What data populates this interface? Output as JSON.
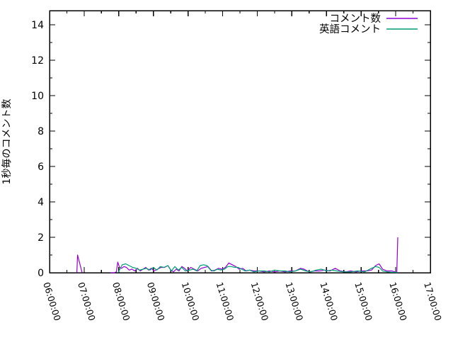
{
  "chart_data": {
    "type": "line",
    "title": "",
    "xlabel": "",
    "ylabel": "1秒毎のコメント数",
    "ylim": [
      0,
      14.8
    ],
    "xlim_hours": [
      6,
      17
    ],
    "grid": false,
    "legend_position": "top-right-inside",
    "y_major_ticks": [
      0,
      2,
      4,
      6,
      8,
      10,
      12,
      14
    ],
    "y_minor_ticks": [
      1,
      3,
      5,
      7,
      9,
      11,
      13
    ],
    "x_minor_step_hours": 0.5,
    "x_ticks": [
      {
        "hour": 6,
        "label": "06:00:00"
      },
      {
        "hour": 7,
        "label": "07:00:00"
      },
      {
        "hour": 8,
        "label": "08:00:00"
      },
      {
        "hour": 9,
        "label": "09:00:00"
      },
      {
        "hour": 10,
        "label": "10:00:00"
      },
      {
        "hour": 11,
        "label": "11:00:00"
      },
      {
        "hour": 12,
        "label": "12:00:00"
      },
      {
        "hour": 13,
        "label": "13:00:00"
      },
      {
        "hour": 14,
        "label": "14:00:00"
      },
      {
        "hour": 15,
        "label": "15:00:00"
      },
      {
        "hour": 16,
        "label": "16:00:00"
      },
      {
        "hour": 17,
        "label": "17:00:00"
      }
    ],
    "series": [
      {
        "name": "コメント数",
        "color": "#9400d3",
        "points": [
          [
            6.79,
            0
          ],
          [
            6.81,
            1
          ],
          [
            6.94,
            0
          ],
          null,
          [
            7.76,
            0
          ],
          [
            7.88,
            0
          ],
          [
            7.93,
            0.05
          ],
          [
            7.97,
            0.6
          ],
          [
            8.02,
            0.3
          ],
          [
            8.08,
            0.25
          ],
          [
            8.15,
            0.35
          ],
          [
            8.22,
            0.3
          ],
          [
            8.3,
            0.15
          ],
          [
            8.38,
            0.2
          ],
          [
            8.46,
            0.1
          ],
          [
            8.54,
            0.25
          ],
          [
            8.62,
            0.1
          ],
          [
            8.7,
            0.2
          ],
          [
            8.78,
            0.3
          ],
          [
            8.86,
            0.15
          ],
          [
            8.94,
            0.25
          ],
          [
            9.02,
            0.1
          ],
          [
            9.12,
            0.2
          ],
          [
            9.22,
            0.3
          ],
          [
            9.32,
            0.3
          ],
          [
            9.42,
            0.4
          ],
          [
            9.5,
            0.15
          ],
          [
            9.58,
            0.05
          ],
          [
            9.66,
            0.2
          ],
          [
            9.74,
            0.1
          ],
          [
            9.82,
            0.35
          ],
          [
            9.9,
            0.25
          ],
          [
            9.98,
            0.1
          ],
          [
            10.08,
            0.3
          ],
          [
            10.18,
            0.2
          ],
          [
            10.28,
            0.1
          ],
          [
            10.38,
            0.25
          ],
          [
            10.48,
            0.3
          ],
          [
            10.58,
            0.35
          ],
          [
            10.68,
            0.1
          ],
          [
            10.78,
            0.15
          ],
          [
            10.88,
            0.25
          ],
          [
            10.98,
            0.2
          ],
          [
            11.08,
            0.3
          ],
          [
            11.18,
            0.55
          ],
          [
            11.28,
            0.45
          ],
          [
            11.38,
            0.35
          ],
          [
            11.48,
            0.2
          ],
          [
            11.58,
            0.25
          ],
          [
            11.68,
            0.1
          ],
          [
            11.78,
            0.15
          ],
          [
            11.9,
            0.1
          ],
          [
            12.05,
            0.1
          ],
          [
            12.2,
            0.05
          ],
          [
            12.35,
            0.1
          ],
          [
            12.5,
            0.05
          ],
          [
            12.65,
            0.1
          ],
          [
            12.8,
            0.05
          ],
          [
            12.95,
            0.1
          ],
          [
            13.1,
            0.1
          ],
          [
            13.25,
            0.25
          ],
          [
            13.35,
            0.2
          ],
          [
            13.5,
            0.05
          ],
          [
            13.65,
            0.1
          ],
          [
            13.8,
            0.1
          ],
          [
            13.95,
            0.15
          ],
          [
            14.1,
            0.1
          ],
          [
            14.25,
            0.25
          ],
          [
            14.4,
            0.1
          ],
          [
            14.55,
            0.05
          ],
          [
            14.7,
            0.1
          ],
          [
            14.85,
            0.05
          ],
          [
            15.0,
            0.1
          ],
          [
            15.15,
            0.1
          ],
          [
            15.3,
            0.15
          ],
          [
            15.42,
            0.4
          ],
          [
            15.52,
            0.5
          ],
          [
            15.62,
            0.2
          ],
          [
            15.75,
            0.1
          ],
          [
            15.88,
            0.1
          ],
          [
            15.98,
            0.05
          ],
          [
            16.03,
            0
          ],
          [
            16.06,
            2
          ]
        ]
      },
      {
        "name": "英語コメント",
        "color": "#009e73",
        "points": [
          [
            7.98,
            0
          ],
          [
            8.03,
            0.2
          ],
          [
            8.1,
            0.45
          ],
          [
            8.2,
            0.5
          ],
          [
            8.3,
            0.4
          ],
          [
            8.4,
            0.3
          ],
          [
            8.5,
            0.25
          ],
          [
            8.6,
            0.15
          ],
          [
            8.7,
            0.2
          ],
          [
            8.8,
            0.25
          ],
          [
            8.9,
            0.15
          ],
          [
            9.0,
            0.3
          ],
          [
            9.1,
            0.15
          ],
          [
            9.2,
            0.35
          ],
          [
            9.3,
            0.3
          ],
          [
            9.42,
            0.4
          ],
          [
            9.52,
            0.1
          ],
          [
            9.62,
            0.35
          ],
          [
            9.72,
            0.15
          ],
          [
            9.82,
            0.3
          ],
          [
            9.92,
            0.1
          ],
          [
            10.05,
            0.15
          ],
          [
            10.15,
            0.2
          ],
          [
            10.25,
            0.1
          ],
          [
            10.35,
            0.4
          ],
          [
            10.45,
            0.45
          ],
          [
            10.55,
            0.4
          ],
          [
            10.65,
            0.15
          ],
          [
            10.75,
            0.1
          ],
          [
            10.85,
            0.2
          ],
          [
            10.95,
            0.15
          ],
          [
            11.05,
            0.2
          ],
          [
            11.15,
            0.35
          ],
          [
            11.25,
            0.35
          ],
          [
            11.35,
            0.3
          ],
          [
            11.45,
            0.3
          ],
          [
            11.55,
            0.2
          ],
          [
            11.65,
            0.1
          ],
          [
            11.78,
            0.15
          ],
          [
            11.9,
            0.05
          ],
          [
            12.05,
            0.1
          ],
          [
            12.2,
            0.1
          ],
          [
            12.35,
            0.05
          ],
          [
            12.5,
            0.15
          ],
          [
            12.65,
            0.1
          ],
          [
            12.8,
            0.1
          ],
          [
            12.95,
            0.05
          ],
          [
            13.1,
            0.1
          ],
          [
            13.25,
            0.2
          ],
          [
            13.4,
            0.1
          ],
          [
            13.55,
            0.05
          ],
          [
            13.7,
            0.15
          ],
          [
            13.85,
            0.2
          ],
          [
            14.0,
            0.1
          ],
          [
            14.15,
            0.15
          ],
          [
            14.3,
            0.1
          ],
          [
            14.5,
            0.05
          ],
          [
            14.7,
            0.05
          ],
          [
            14.9,
            0.1
          ],
          [
            15.1,
            0.05
          ],
          [
            15.3,
            0.25
          ],
          [
            15.42,
            0.35
          ],
          [
            15.52,
            0.3
          ],
          [
            15.62,
            0.1
          ],
          [
            15.75,
            0.05
          ],
          [
            15.9,
            0.02
          ],
          [
            16.05,
            0.02
          ]
        ]
      }
    ]
  }
}
